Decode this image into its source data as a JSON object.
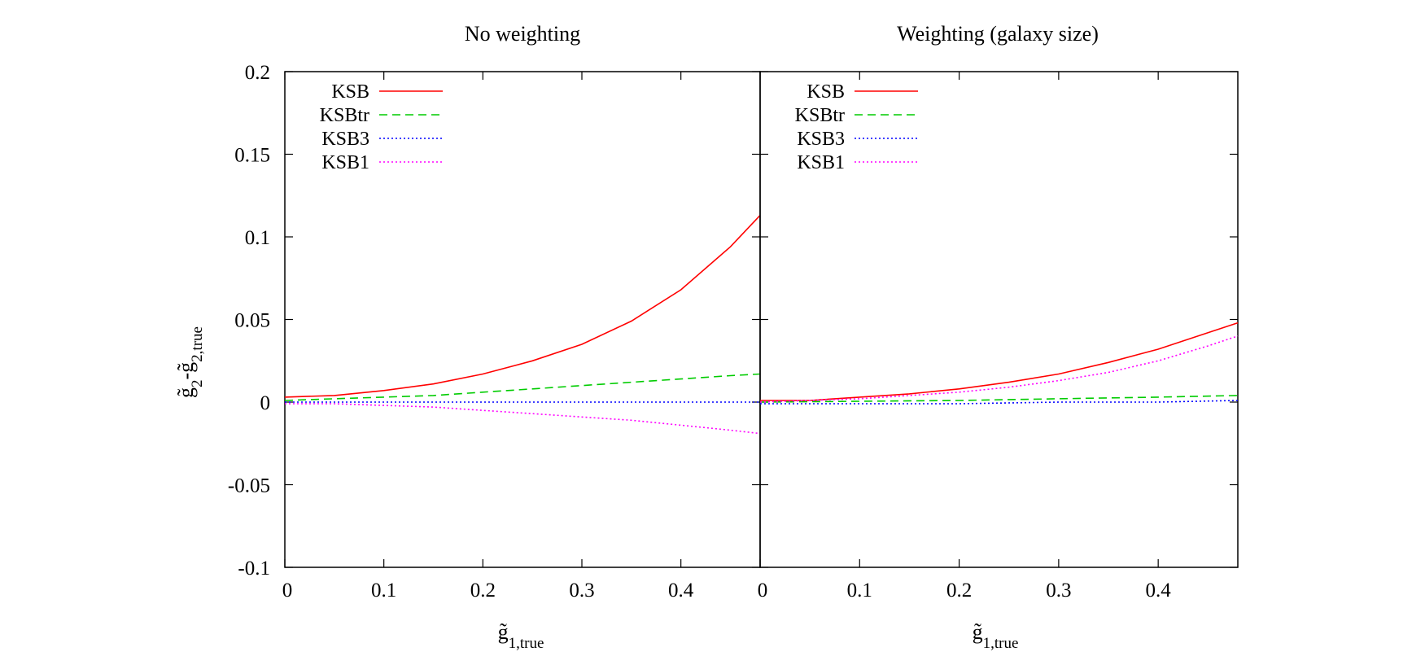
{
  "chart_data": [
    {
      "type": "line",
      "title": "No weighting",
      "xlabel": "g̃1,true",
      "ylabel": "g̃2-g̃2,true",
      "xlim": [
        0,
        0.48
      ],
      "ylim": [
        -0.1,
        0.2
      ],
      "x_ticks": [
        "0",
        "0.1",
        "0.2",
        "0.3",
        "0.4"
      ],
      "y_ticks": [
        "-0.1",
        "-0.05",
        "0",
        "0.05",
        "0.1",
        "0.15",
        "0.2"
      ],
      "legend_position": "top-left",
      "grid": false,
      "series": [
        {
          "name": "KSB",
          "color": "#ff0000",
          "dash": "solid",
          "x": [
            0,
            0.05,
            0.1,
            0.15,
            0.2,
            0.25,
            0.3,
            0.35,
            0.4,
            0.45,
            0.48
          ],
          "y": [
            0.003,
            0.004,
            0.007,
            0.011,
            0.017,
            0.025,
            0.035,
            0.049,
            0.068,
            0.094,
            0.113
          ]
        },
        {
          "name": "KSBtr",
          "color": "#00cc00",
          "dash": "dashed",
          "x": [
            0,
            0.05,
            0.1,
            0.15,
            0.2,
            0.25,
            0.3,
            0.35,
            0.4,
            0.45,
            0.48
          ],
          "y": [
            0.001,
            0.002,
            0.003,
            0.004,
            0.006,
            0.008,
            0.01,
            0.012,
            0.014,
            0.016,
            0.017
          ]
        },
        {
          "name": "KSB3",
          "color": "#0000ff",
          "dash": "dotted",
          "x": [
            0,
            0.1,
            0.2,
            0.3,
            0.4,
            0.48
          ],
          "y": [
            0,
            0,
            0,
            0,
            0,
            0
          ]
        },
        {
          "name": "KSB1",
          "color": "#ff00ff",
          "dash": "dotted",
          "x": [
            0,
            0.05,
            0.1,
            0.15,
            0.2,
            0.25,
            0.3,
            0.35,
            0.4,
            0.45,
            0.48
          ],
          "y": [
            -0.001,
            -0.001,
            -0.002,
            -0.003,
            -0.005,
            -0.007,
            -0.009,
            -0.011,
            -0.014,
            -0.017,
            -0.019
          ]
        }
      ]
    },
    {
      "type": "line",
      "title": "Weighting (galaxy size)",
      "xlabel": "g̃1,true",
      "ylabel": "",
      "xlim": [
        0,
        0.48
      ],
      "ylim": [
        -0.1,
        0.2
      ],
      "x_ticks": [
        "0",
        "0.1",
        "0.2",
        "0.3",
        "0.4"
      ],
      "y_ticks": [],
      "legend_position": "top-left",
      "grid": false,
      "series": [
        {
          "name": "KSB",
          "color": "#ff0000",
          "dash": "solid",
          "x": [
            0,
            0.05,
            0.1,
            0.15,
            0.2,
            0.25,
            0.3,
            0.35,
            0.4,
            0.45,
            0.48
          ],
          "y": [
            0.001,
            0.001,
            0.003,
            0.005,
            0.008,
            0.012,
            0.017,
            0.024,
            0.032,
            0.042,
            0.048
          ]
        },
        {
          "name": "KSBtr",
          "color": "#00cc00",
          "dash": "dashed",
          "x": [
            0,
            0.1,
            0.2,
            0.3,
            0.4,
            0.48
          ],
          "y": [
            0,
            0.0005,
            0.001,
            0.002,
            0.003,
            0.004
          ]
        },
        {
          "name": "KSB3",
          "color": "#0000ff",
          "dash": "dotted",
          "x": [
            0,
            0.1,
            0.2,
            0.3,
            0.4,
            0.48
          ],
          "y": [
            -0.001,
            -0.001,
            -0.001,
            0,
            0,
            0.001
          ]
        },
        {
          "name": "KSB1",
          "color": "#ff00ff",
          "dash": "dotted",
          "x": [
            0,
            0.05,
            0.1,
            0.15,
            0.2,
            0.25,
            0.3,
            0.35,
            0.4,
            0.45,
            0.48
          ],
          "y": [
            0,
            0.001,
            0.002,
            0.004,
            0.006,
            0.009,
            0.013,
            0.018,
            0.025,
            0.034,
            0.04
          ]
        }
      ]
    }
  ]
}
